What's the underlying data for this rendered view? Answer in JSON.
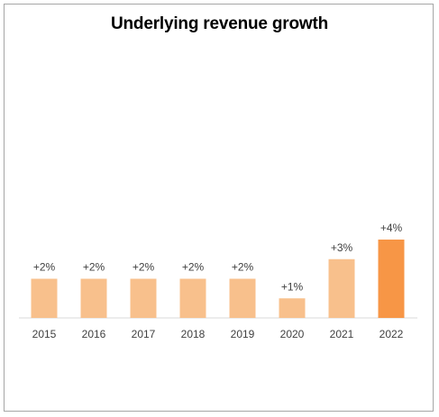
{
  "chart_data": {
    "type": "bar",
    "title": "Underlying revenue growth",
    "categories": [
      "2015",
      "2016",
      "2017",
      "2018",
      "2019",
      "2020",
      "2021",
      "2022"
    ],
    "values": [
      2,
      2,
      2,
      2,
      2,
      1,
      3,
      4
    ],
    "data_labels": [
      "+2%",
      "+2%",
      "+2%",
      "+2%",
      "+2%",
      "+1%",
      "+3%",
      "+4%"
    ],
    "unit": "%",
    "ylim": [
      0,
      4
    ],
    "grid": false,
    "colors": {
      "default": "#f8c08c",
      "highlight": "#f79646",
      "highlight_category": "2022",
      "axis": "#d9d9d9"
    }
  }
}
